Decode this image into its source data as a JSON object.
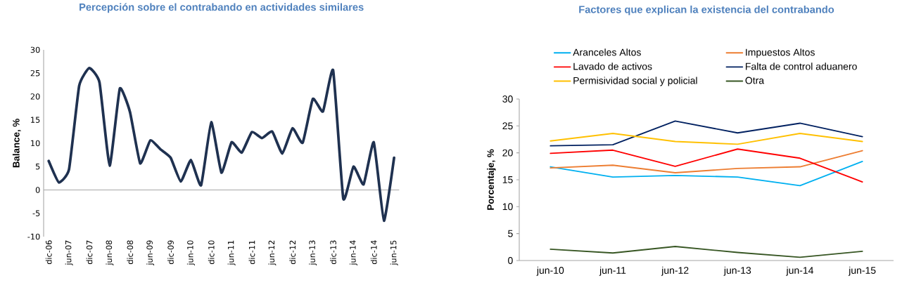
{
  "chart_data": [
    {
      "type": "line",
      "title": "Percepción sobre el contrabando en actividades similares",
      "ylabel": "Balance, %",
      "categories": [
        "dic-06",
        null,
        "jun-07",
        null,
        "dic-07",
        null,
        "jun-08",
        null,
        "dic-08",
        null,
        "jun-09",
        null,
        "dic-09",
        null,
        "jun-10",
        null,
        "dic-10",
        null,
        "jun-11",
        null,
        "dic-11",
        null,
        "jun-12",
        null,
        "dic-12",
        null,
        "jun-13",
        null,
        "dic-13",
        null,
        "jun-14",
        null,
        "dic-14",
        null,
        "jun-15"
      ],
      "values": [
        6.2,
        1.6,
        4.4,
        22.3,
        26.1,
        23.0,
        5.2,
        21.7,
        16.7,
        5.7,
        10.6,
        8.7,
        6.9,
        1.8,
        6.4,
        1.0,
        14.5,
        3.7,
        10.2,
        8.0,
        12.4,
        11.1,
        12.5,
        7.8,
        13.2,
        10.1,
        19.5,
        16.8,
        25.6,
        -1.9,
        5.0,
        1.2,
        10.2,
        -6.6,
        6.9
      ],
      "color": "#1f3150",
      "ylim": [
        -10,
        30
      ],
      "yticks": [
        -10,
        -5,
        0,
        5,
        10,
        15,
        20,
        25,
        30
      ],
      "legend": false
    },
    {
      "type": "line",
      "title": "Factores que explican la existencia del contrabando",
      "ylabel": "Porcentaje, %",
      "categories": [
        "jun-10",
        "jun-11",
        "jun-12",
        "jun-13",
        "jun-14",
        "jun-15"
      ],
      "series": [
        {
          "name": "Aranceles Altos",
          "color": "#00b0f0",
          "values": [
            17.4,
            15.5,
            15.8,
            15.5,
            13.9,
            18.4
          ]
        },
        {
          "name": "Impuestos Altos",
          "color": "#ed7d31",
          "values": [
            17.2,
            17.7,
            16.3,
            17.1,
            17.4,
            20.4
          ]
        },
        {
          "name": "Lavado de activos",
          "color": "#ff0000",
          "values": [
            19.9,
            20.5,
            17.5,
            20.7,
            19.0,
            14.6
          ]
        },
        {
          "name": "Falta de control aduanero",
          "color": "#002060",
          "values": [
            21.3,
            21.5,
            25.9,
            23.7,
            25.5,
            23.0
          ]
        },
        {
          "name": "Permisividad social y policial",
          "color": "#ffc000",
          "values": [
            22.2,
            23.6,
            22.1,
            21.6,
            23.6,
            22.1
          ]
        },
        {
          "name": "Otra",
          "color": "#375623",
          "values": [
            2.1,
            1.4,
            2.6,
            1.5,
            0.6,
            1.7
          ]
        }
      ],
      "ylim": [
        0,
        30
      ],
      "yticks": [
        0,
        5,
        10,
        15,
        20,
        25,
        30
      ],
      "legend": "top"
    }
  ]
}
